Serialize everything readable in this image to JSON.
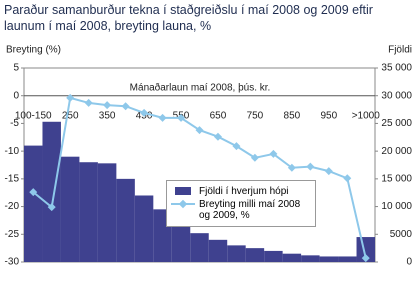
{
  "chart_data": {
    "type": "bar-line",
    "title": "Paraður samanburður tekna í staðgreiðslu í maí 2008 og 2009 eftir launum í maí 2008, breyting launa, %",
    "y_label": "Breyting (%)",
    "y2_label": "Fjöldi",
    "annotation": "Mánaðarlaun maí 2008, þús. kr.",
    "categories": [
      "100-150",
      null,
      "250",
      null,
      "350",
      null,
      "450",
      null,
      "550",
      null,
      "650",
      null,
      "750",
      null,
      "850",
      null,
      "950",
      null,
      ">1000"
    ],
    "series": [
      {
        "name": "Fjöldi í hverjum hópi",
        "type": "bar",
        "axis": "y2",
        "color": "#3f418f",
        "values": [
          21000,
          25300,
          19000,
          18000,
          17800,
          15000,
          12000,
          9500,
          7000,
          5200,
          4000,
          3000,
          2500,
          2000,
          1500,
          1200,
          1000,
          1000,
          4500
        ]
      },
      {
        "name": "Breyting milli maí 2008 og 2009, %",
        "type": "line",
        "color": "#8ec8ea",
        "values": [
          -17.4,
          -20.1,
          -0.4,
          -1.3,
          -1.7,
          -1.9,
          -3.1,
          -4.0,
          -4.0,
          -6.2,
          -7.4,
          -9.1,
          -11.2,
          -10.5,
          -13.0,
          -12.8,
          -13.6,
          -14.9,
          -29.3
        ]
      }
    ],
    "ylim": [
      -30,
      5
    ],
    "yticks": [
      5,
      0,
      -5,
      -10,
      -15,
      -20,
      -25,
      -30
    ],
    "y2lim": [
      0,
      35000
    ],
    "y2ticks": [
      0,
      {
        "value": 5000,
        "label": "5000"
      },
      {
        "value": 10000,
        "label": "10 000"
      },
      {
        "value": 15000,
        "label": "15 000"
      },
      {
        "value": 20000,
        "label": "20 000"
      },
      {
        "value": 25000,
        "label": "25 000"
      },
      {
        "value": 30000,
        "label": "30 000"
      },
      {
        "value": 35000,
        "label": "35 000"
      }
    ]
  }
}
